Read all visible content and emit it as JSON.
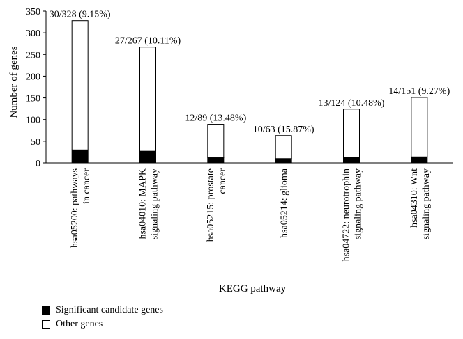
{
  "chart_data": {
    "type": "bar",
    "stacked": true,
    "categories": [
      [
        "hsa05200: pathways",
        "in cancer"
      ],
      [
        "hsa04010: MAPK",
        "signaling pathway"
      ],
      [
        "hsa05215: prostate",
        "cancer"
      ],
      [
        "hsa05214: glioma"
      ],
      [
        "hsa04722: neurotrophin",
        "signaling pathway"
      ],
      [
        "hsa04310: Wnt",
        "signaling pathway"
      ]
    ],
    "series": [
      {
        "name": "Significant candidate genes",
        "values": [
          30,
          27,
          12,
          10,
          13,
          14
        ],
        "color": "#000000"
      },
      {
        "name": "Other genes",
        "values": [
          298,
          240,
          77,
          53,
          111,
          137
        ],
        "color": "#ffffff"
      }
    ],
    "totals": [
      328,
      267,
      89,
      63,
      124,
      151
    ],
    "data_labels": [
      "30/328 (9.15%)",
      "27/267 (10.11%)",
      "12/89 (13.48%)",
      "10/63 (15.87%)",
      "13/124 (10.48%)",
      "14/151 (9.27%)"
    ],
    "ylabel": "Number of genes",
    "xlabel": "KEGG pathway",
    "ylim": [
      0,
      350
    ],
    "yticks": [
      0,
      50,
      100,
      150,
      200,
      250,
      300,
      350
    ],
    "grid": false,
    "legend_position": "bottom-left"
  }
}
